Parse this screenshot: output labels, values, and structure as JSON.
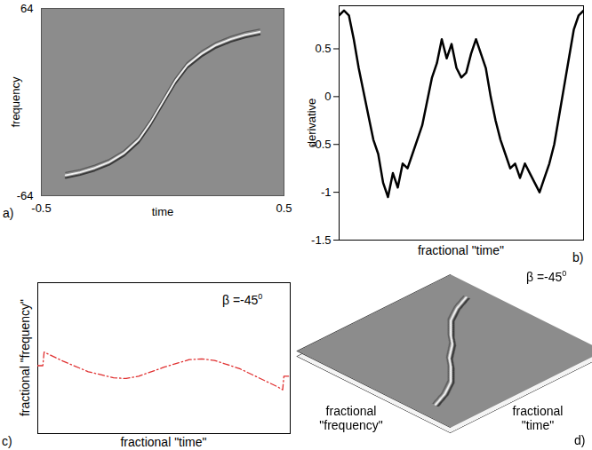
{
  "chart_data": [
    {
      "type": "line",
      "panel_label": "a)",
      "x_label": "time",
      "y_label": "frequency",
      "x": [
        -0.4,
        -0.34,
        -0.28,
        -0.22,
        -0.16,
        -0.1,
        -0.05,
        0,
        0.05,
        0.1,
        0.16,
        0.22,
        0.28,
        0.34,
        0.4
      ],
      "values": [
        -50,
        -48,
        -45,
        -41,
        -35,
        -26,
        -14,
        0,
        14,
        25,
        33,
        39,
        43,
        46,
        48
      ],
      "xlim": [
        -0.5,
        0.5
      ],
      "xticks": [
        -0.5,
        0.5
      ],
      "ylim": [
        -64,
        64
      ],
      "yticks": [
        64,
        -64
      ]
    },
    {
      "type": "line",
      "panel_label": "b)",
      "x_label": "fractional \"time\"",
      "y_label": "derivative",
      "color": "#000000",
      "line_style": "solid",
      "tick_labels": "y",
      "x": [
        0,
        0.02,
        0.04,
        0.06,
        0.08,
        0.1,
        0.12,
        0.14,
        0.16,
        0.18,
        0.2,
        0.22,
        0.24,
        0.26,
        0.28,
        0.3,
        0.32,
        0.34,
        0.36,
        0.38,
        0.4,
        0.42,
        0.44,
        0.46,
        0.48,
        0.5,
        0.52,
        0.54,
        0.56,
        0.58,
        0.6,
        0.62,
        0.64,
        0.66,
        0.68,
        0.7,
        0.72,
        0.74,
        0.76,
        0.78,
        0.8,
        0.82,
        0.84,
        0.86,
        0.88,
        0.9,
        0.92,
        0.94,
        0.96,
        0.98,
        1
      ],
      "values": [
        0.85,
        0.9,
        0.85,
        0.6,
        0.3,
        0.05,
        -0.2,
        -0.45,
        -0.6,
        -0.9,
        -1.05,
        -0.8,
        -0.95,
        -0.7,
        -0.75,
        -0.6,
        -0.45,
        -0.3,
        -0.05,
        0.2,
        0.35,
        0.6,
        0.4,
        0.55,
        0.3,
        0.2,
        0.25,
        0.45,
        0.6,
        0.45,
        0.3,
        0.0,
        -0.25,
        -0.45,
        -0.6,
        -0.75,
        -0.7,
        -0.85,
        -0.7,
        -0.8,
        -0.9,
        -1.0,
        -0.85,
        -0.7,
        -0.5,
        -0.2,
        0.1,
        0.4,
        0.7,
        0.85,
        0.9
      ],
      "xlim": [
        0,
        1
      ],
      "ylim": [
        -1.5,
        0.95
      ],
      "yticks": [
        0.5,
        0,
        -0.5,
        -1,
        -1.5
      ]
    },
    {
      "type": "line",
      "panel_label": "c)",
      "x_label": "fractional \"time\"",
      "y_label": "fractional \"frequency\"",
      "annotation": {
        "text": "β =-45",
        "superscript": "0"
      },
      "color": "#e03030",
      "line_style": "dashdot",
      "tick_labels": false,
      "x": [
        0,
        0.02,
        0.025,
        0.05,
        0.1,
        0.2,
        0.3,
        0.35,
        0.4,
        0.5,
        0.6,
        0.65,
        0.7,
        0.8,
        0.9,
        0.95,
        0.97,
        0.975,
        1
      ],
      "values": [
        4.5,
        4.5,
        5.4,
        5.2,
        4.8,
        4.1,
        3.7,
        3.65,
        3.8,
        4.4,
        4.9,
        4.95,
        4.85,
        4.3,
        3.5,
        3.1,
        2.9,
        3.8,
        3.8
      ],
      "xlim": [
        0,
        1
      ],
      "ylim": [
        0,
        10
      ]
    },
    {
      "type": "line",
      "panel_label": "d)",
      "x_label": "fractional \"time\"",
      "y_label": "fractional \"frequency\"",
      "annotation": {
        "text": "β =-45",
        "superscript": "0"
      },
      "tick_labels": false,
      "x": [
        -0.4,
        -0.3,
        -0.2,
        -0.1,
        -0.05,
        0,
        0.05,
        0.1,
        0.2,
        0.3,
        0.4
      ],
      "values": [
        -0.3,
        -0.26,
        -0.2,
        -0.1,
        -0.04,
        0,
        0.04,
        0.1,
        0.2,
        0.26,
        0.3
      ],
      "xlim": [
        -0.5,
        0.5
      ],
      "ylim": [
        -0.5,
        0.5
      ]
    }
  ]
}
